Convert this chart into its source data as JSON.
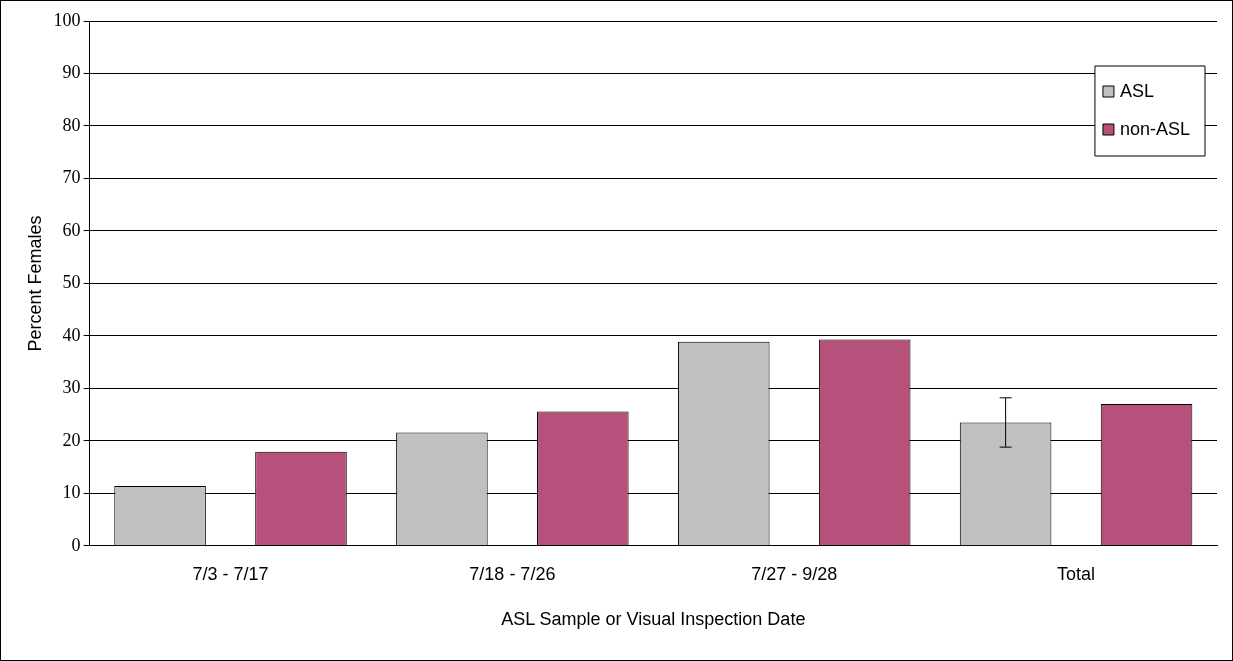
{
  "chart_data": {
    "type": "bar",
    "xlabel": "ASL Sample or Visual Inspection Date",
    "ylabel": "Percent Females",
    "categories": [
      "7/3 - 7/17",
      "7/18 - 7/26",
      "7/27 - 9/28",
      "Total"
    ],
    "series": [
      {
        "name": "ASL",
        "color": "#c0c0c0",
        "values": [
          11.4,
          21.6,
          38.9,
          23.5
        ],
        "errors": [
          null,
          null,
          null,
          4.7
        ]
      },
      {
        "name": "non-ASL",
        "color": "#b5517a",
        "values": [
          17.9,
          25.6,
          39.3,
          27.0
        ]
      }
    ],
    "ylim": [
      0,
      100
    ],
    "yticks": [
      0,
      10,
      20,
      30,
      40,
      50,
      60,
      70,
      80,
      90,
      100
    ],
    "grid": "y",
    "legend": "top right"
  }
}
